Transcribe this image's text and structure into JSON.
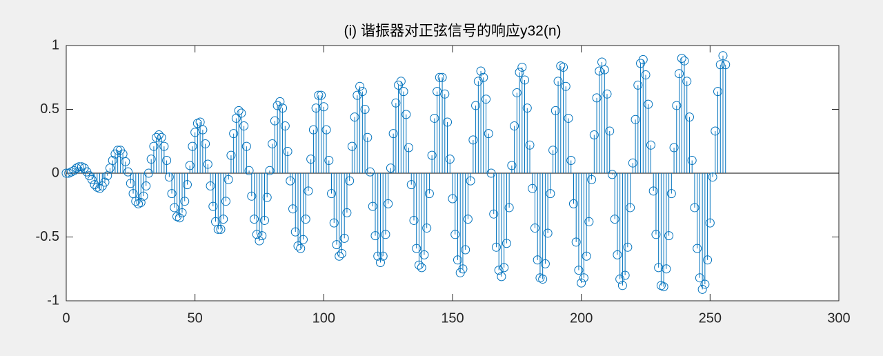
{
  "chart_data": {
    "type": "stem",
    "title": "(i) 谐振器对正弦信号的响应y32(n)",
    "color": "#0072bd",
    "xlim": [
      0,
      300
    ],
    "xticks": [
      0,
      50,
      100,
      150,
      200,
      250,
      300
    ],
    "ylim": [
      -1,
      1
    ],
    "yticks": [
      -1,
      -0.5,
      0,
      0.5,
      1
    ],
    "x": [
      0,
      1,
      2,
      3,
      4,
      5,
      6,
      7,
      8,
      9,
      10,
      11,
      12,
      13,
      14,
      15,
      16,
      17,
      18,
      19,
      20,
      21,
      22,
      23,
      24,
      25,
      26,
      27,
      28,
      29,
      30,
      31,
      32,
      33,
      34,
      35,
      36,
      37,
      38,
      39,
      40,
      41,
      42,
      43,
      44,
      45,
      46,
      47,
      48,
      49,
      50,
      51,
      52,
      53,
      54,
      55,
      56,
      57,
      58,
      59,
      60,
      61,
      62,
      63,
      64,
      65,
      66,
      67,
      68,
      69,
      70,
      71,
      72,
      73,
      74,
      75,
      76,
      77,
      78,
      79,
      80,
      81,
      82,
      83,
      84,
      85,
      86,
      87,
      88,
      89,
      90,
      91,
      92,
      93,
      94,
      95,
      96,
      97,
      98,
      99,
      100,
      101,
      102,
      103,
      104,
      105,
      106,
      107,
      108,
      109,
      110,
      111,
      112,
      113,
      114,
      115,
      116,
      117,
      118,
      119,
      120,
      121,
      122,
      123,
      124,
      125,
      126,
      127,
      128,
      129,
      130,
      131,
      132,
      133,
      134,
      135,
      136,
      137,
      138,
      139,
      140,
      141,
      142,
      143,
      144,
      145,
      146,
      147,
      148,
      149,
      150,
      151,
      152,
      153,
      154,
      155,
      156,
      157,
      158,
      159,
      160,
      161,
      162,
      163,
      164,
      165,
      166,
      167,
      168,
      169,
      170,
      171,
      172,
      173,
      174,
      175,
      176,
      177,
      178,
      179,
      180,
      181,
      182,
      183,
      184,
      185,
      186,
      187,
      188,
      189,
      190,
      191,
      192,
      193,
      194,
      195,
      196,
      197,
      198,
      199,
      200,
      201,
      202,
      203,
      204,
      205,
      206,
      207,
      208,
      209,
      210,
      211,
      212,
      213,
      214,
      215,
      216,
      217,
      218,
      219,
      220,
      221,
      222,
      223,
      224,
      225,
      226,
      227,
      228,
      229,
      230,
      231,
      232,
      233,
      234,
      235,
      236,
      237,
      238,
      239,
      240,
      241,
      242,
      243,
      244,
      245,
      246,
      247,
      248,
      249,
      250,
      251,
      252,
      253,
      254,
      255,
      256
    ],
    "values": [
      0,
      0,
      0.01,
      0.02,
      0.04,
      0.05,
      0.05,
      0.04,
      0.01,
      -0.02,
      -0.05,
      -0.09,
      -0.11,
      -0.12,
      -0.1,
      -0.07,
      -0.02,
      0.04,
      0.1,
      0.15,
      0.18,
      0.18,
      0.15,
      0.09,
      0.01,
      -0.08,
      -0.16,
      -0.22,
      -0.24,
      -0.23,
      -0.18,
      -0.1,
      0,
      0.11,
      0.21,
      0.28,
      0.3,
      0.28,
      0.21,
      0.1,
      -0.03,
      -0.16,
      -0.27,
      -0.34,
      -0.35,
      -0.31,
      -0.22,
      -0.09,
      0.06,
      0.21,
      0.32,
      0.39,
      0.4,
      0.34,
      0.23,
      0.07,
      -0.1,
      -0.26,
      -0.38,
      -0.44,
      -0.44,
      -0.36,
      -0.22,
      -0.05,
      0.14,
      0.31,
      0.43,
      0.49,
      0.47,
      0.37,
      0.21,
      0.02,
      -0.18,
      -0.36,
      -0.48,
      -0.53,
      -0.49,
      -0.37,
      -0.19,
      0.02,
      0.23,
      0.41,
      0.53,
      0.56,
      0.51,
      0.37,
      0.17,
      -0.06,
      -0.28,
      -0.46,
      -0.57,
      -0.59,
      -0.52,
      -0.36,
      -0.14,
      0.11,
      0.34,
      0.51,
      0.61,
      0.61,
      0.52,
      0.34,
      0.1,
      -0.16,
      -0.39,
      -0.56,
      -0.65,
      -0.63,
      -0.51,
      -0.31,
      -0.06,
      0.21,
      0.44,
      0.61,
      0.68,
      0.64,
      0.5,
      0.28,
      0.01,
      -0.26,
      -0.49,
      -0.65,
      -0.7,
      -0.65,
      -0.48,
      -0.24,
      0.04,
      0.31,
      0.55,
      0.69,
      0.72,
      0.64,
      0.46,
      0.2,
      -0.09,
      -0.37,
      -0.59,
      -0.72,
      -0.74,
      -0.64,
      -0.43,
      -0.16,
      0.14,
      0.43,
      0.64,
      0.75,
      0.75,
      0.62,
      0.4,
      0.11,
      -0.2,
      -0.48,
      -0.68,
      -0.78,
      -0.75,
      -0.6,
      -0.36,
      -0.06,
      0.26,
      0.53,
      0.72,
      0.8,
      0.75,
      0.58,
      0.31,
      0,
      -0.32,
      -0.58,
      -0.76,
      -0.81,
      -0.74,
      -0.55,
      -0.27,
      0.06,
      0.37,
      0.63,
      0.79,
      0.83,
      0.73,
      0.51,
      0.22,
      -0.12,
      -0.43,
      -0.68,
      -0.82,
      -0.83,
      -0.71,
      -0.47,
      -0.16,
      0.18,
      0.49,
      0.72,
      0.84,
      0.83,
      0.68,
      0.43,
      0.1,
      -0.24,
      -0.54,
      -0.76,
      -0.86,
      -0.82,
      -0.65,
      -0.38,
      -0.05,
      0.3,
      0.59,
      0.8,
      0.87,
      0.81,
      0.62,
      0.33,
      -0.01,
      -0.36,
      -0.64,
      -0.83,
      -0.88,
      -0.8,
      -0.58,
      -0.27,
      0.08,
      0.42,
      0.69,
      0.86,
      0.89,
      0.77,
      0.54,
      0.22,
      -0.14,
      -0.48,
      -0.74,
      -0.88,
      -0.89,
      -0.75,
      -0.49,
      -0.16,
      0.2,
      0.53,
      0.78,
      0.9,
      0.88,
      0.72,
      0.44,
      0.1,
      -0.27,
      -0.59,
      -0.82,
      -0.91,
      -0.87,
      -0.68,
      -0.39,
      -0.03,
      0.33,
      0.64,
      0.85,
      0.92,
      0.85
    ]
  }
}
